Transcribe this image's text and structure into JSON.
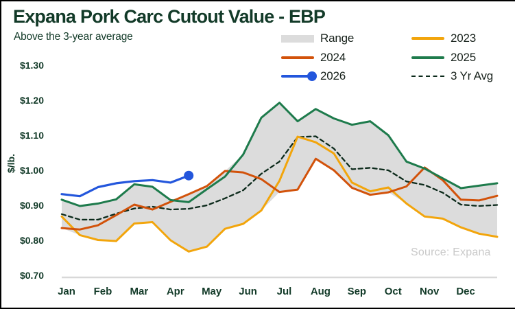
{
  "header": {
    "title": "Expana Pork Carc Cutout Value - EBP",
    "subtitle": "Above the 3-year average"
  },
  "source_note": "Source: Expana",
  "colors": {
    "title_text": "#123a28",
    "axis_text": "#123a28",
    "legend_text": "#17211b",
    "range_band": "#dcdcdc",
    "axis_line": "#d8d8d8",
    "source_text": "#c9c9c9",
    "y2023": "#f2a50c",
    "y2024": "#d2520a",
    "y2025": "#1e7b4c",
    "y2026": "#2356dc",
    "avg3yr": "#0c2a1b"
  },
  "legend": {
    "columns": [
      [
        {
          "label": "Range",
          "swatch": "band",
          "color": "#dcdcdc"
        },
        {
          "label": "2024",
          "swatch": "line",
          "color": "#d2520a"
        },
        {
          "label": "2026",
          "swatch": "line-dot",
          "color": "#2356dc"
        }
      ],
      [
        {
          "label": "2023",
          "swatch": "line",
          "color": "#f2a50c"
        },
        {
          "label": "2025",
          "swatch": "line",
          "color": "#1e7b4c"
        },
        {
          "label": "3 Yr Avg",
          "swatch": "dashed",
          "color": "#0c2a1b"
        }
      ]
    ]
  },
  "y_axis": {
    "title": "$/lb.",
    "tick_labels": [
      "$1.30",
      "$1.20",
      "$1.10",
      "$1.00",
      "$0.90",
      "$0.80",
      "$0.70"
    ],
    "tick_values": [
      1.3,
      1.2,
      1.1,
      1.0,
      0.9,
      0.8,
      0.7
    ]
  },
  "chart_data": {
    "type": "line",
    "title": "Expana Pork Carc Cutout Value - EBP",
    "xlabel": "",
    "ylabel": "$/lb.",
    "ylim": [
      0.7,
      1.3
    ],
    "x_categories": [
      "Jan",
      "Feb",
      "Mar",
      "Apr",
      "May",
      "Jun",
      "Jul",
      "Aug",
      "Sep",
      "Oct",
      "Nov",
      "Dec"
    ],
    "sampling": "semi-monthly values ($/lb), 25 points from Jan 1 to Dec 31",
    "grid": false,
    "legend_position": "top-right",
    "series": [
      {
        "name": "2023",
        "color": "#f2a50c",
        "style": "solid",
        "values": [
          0.868,
          0.815,
          0.801,
          0.798,
          0.848,
          0.852,
          0.8,
          0.768,
          0.782,
          0.833,
          0.847,
          0.885,
          0.97,
          1.096,
          1.08,
          1.048,
          0.965,
          0.94,
          0.951,
          0.905,
          0.868,
          0.862,
          0.837,
          0.819,
          0.81
        ]
      },
      {
        "name": "2024",
        "color": "#d2520a",
        "style": "solid",
        "values": [
          0.835,
          0.831,
          0.843,
          0.872,
          0.902,
          0.888,
          0.91,
          0.932,
          0.955,
          0.998,
          0.994,
          0.975,
          0.938,
          0.945,
          1.033,
          1.0,
          0.95,
          0.93,
          0.937,
          0.954,
          1.008,
          0.972,
          0.916,
          0.914,
          0.927
        ]
      },
      {
        "name": "2025",
        "color": "#1e7b4c",
        "style": "solid",
        "values": [
          0.916,
          0.898,
          0.905,
          0.917,
          0.96,
          0.953,
          0.915,
          0.909,
          0.946,
          0.982,
          1.045,
          1.15,
          1.193,
          1.14,
          1.175,
          1.148,
          1.13,
          1.14,
          1.1,
          1.025,
          1.005,
          0.977,
          0.949,
          0.956,
          0.963
        ]
      },
      {
        "name": "2026",
        "color": "#2356dc",
        "style": "solid",
        "end_marker": "dot",
        "note": "partial year through mid-April",
        "values": [
          0.932,
          0.926,
          0.952,
          0.963,
          0.969,
          0.972,
          0.965,
          0.985
        ]
      },
      {
        "name": "3 Yr Avg",
        "color": "#0c2a1b",
        "style": "dashed",
        "values": [
          0.875,
          0.859,
          0.859,
          0.876,
          0.891,
          0.896,
          0.888,
          0.89,
          0.9,
          0.92,
          0.943,
          0.99,
          1.025,
          1.095,
          1.097,
          1.062,
          1.003,
          1.007,
          1.0,
          0.968,
          0.958,
          0.936,
          0.902,
          0.898,
          0.901
        ]
      }
    ],
    "range_band": {
      "label": "Range",
      "color": "#dcdcdc",
      "derived_from": "min/max of 2023, 2024 and 2025 series"
    }
  }
}
